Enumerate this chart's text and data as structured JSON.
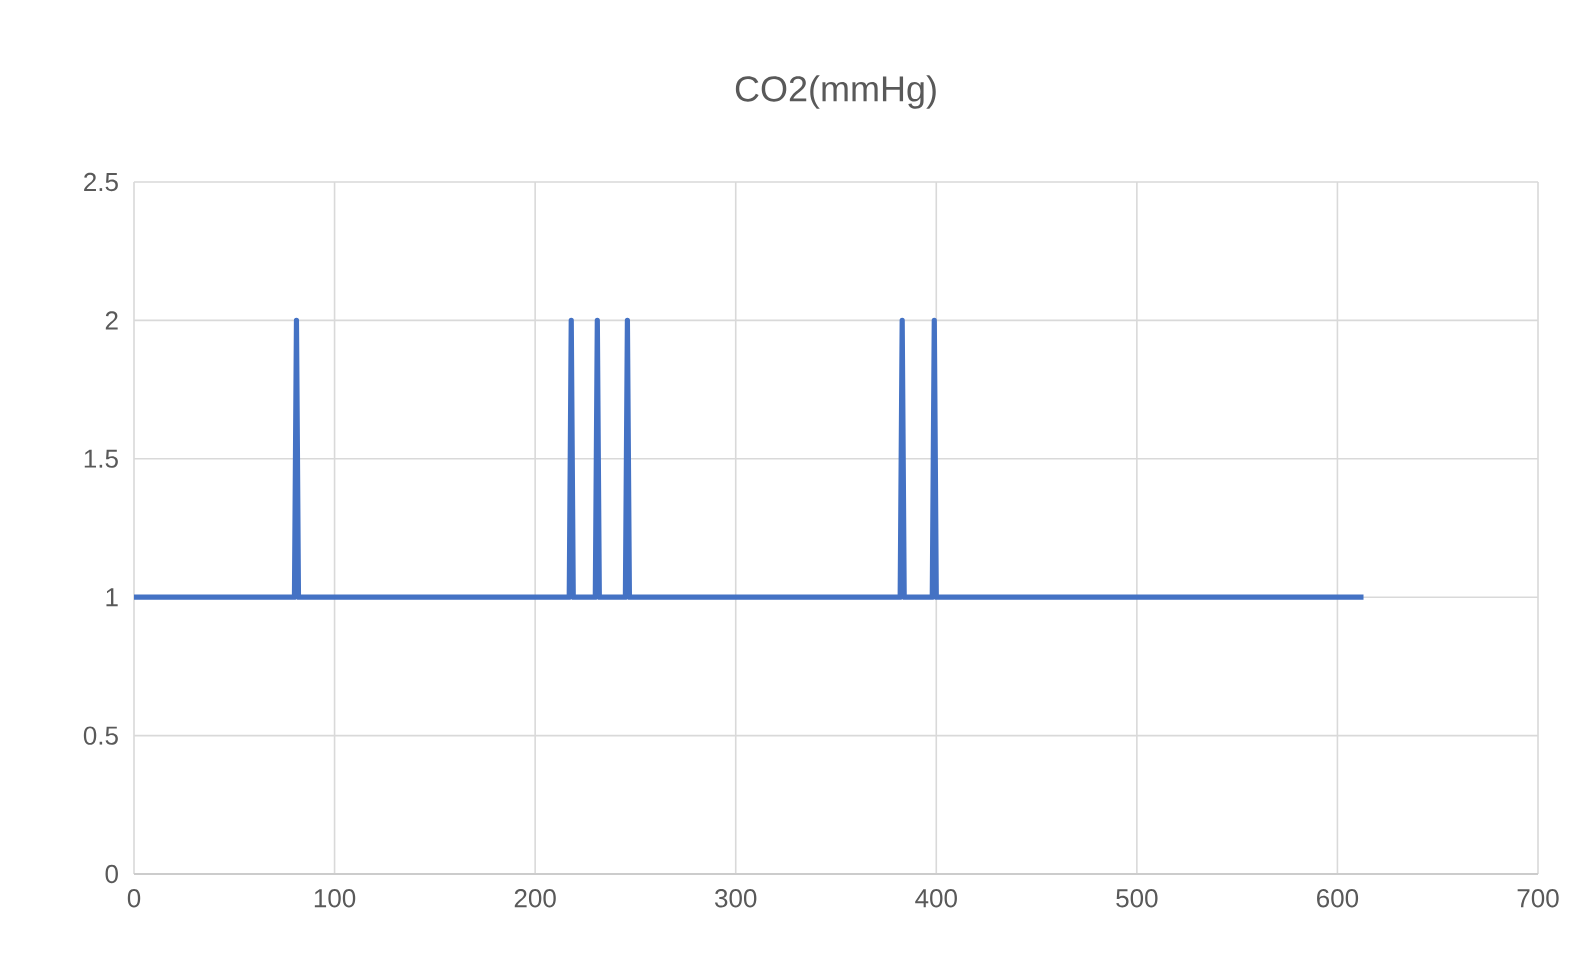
{
  "chart_data": {
    "type": "line",
    "title": "CO2(mmHg)",
    "x": [
      0,
      80,
      81,
      82,
      217,
      218,
      219,
      230,
      231,
      232,
      245,
      246,
      247,
      382,
      383,
      384,
      398,
      399,
      400,
      613
    ],
    "series": [
      {
        "color": "#4472c4",
        "values": [
          1,
          1,
          2,
          1,
          1,
          2,
          1,
          1,
          2,
          1,
          1,
          2,
          1,
          1,
          2,
          1,
          1,
          2,
          1,
          1
        ]
      }
    ],
    "xlim": [
      0,
      700
    ],
    "ylim": [
      0,
      2.5
    ],
    "xticks": [
      0,
      100,
      200,
      300,
      400,
      500,
      600,
      700
    ],
    "yticks": [
      0,
      0.5,
      1,
      1.5,
      2,
      2.5
    ],
    "grid": true,
    "marker": "none",
    "line_style": "solid"
  }
}
